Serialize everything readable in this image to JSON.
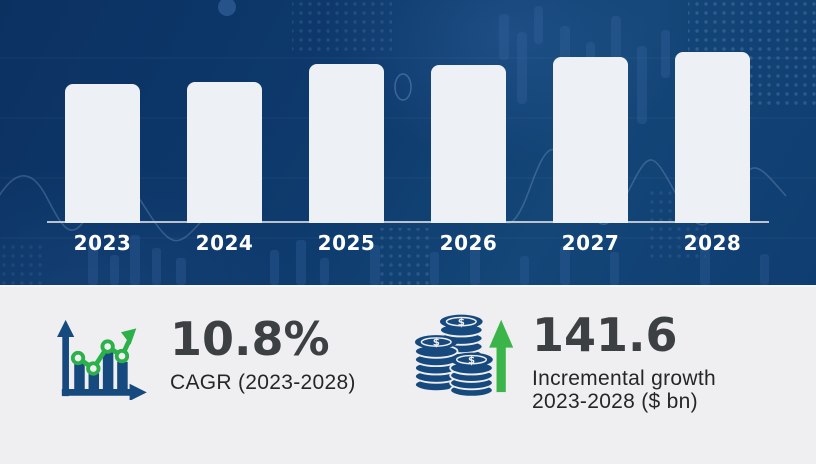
{
  "chart_data": {
    "type": "bar",
    "title": "",
    "categories": [
      "2023",
      "2024",
      "2025",
      "2026",
      "2027",
      "2028"
    ],
    "values": [
      139,
      141,
      159,
      158,
      166,
      171
    ],
    "value_unit": "bar height in px as drawn (chart displays no numeric y-axis)",
    "xlabel": "",
    "ylabel": "",
    "grid": false,
    "legend": false,
    "bar_color": "#edf0f4",
    "label_color": "#ffffff",
    "axis_color": "#c9ced6",
    "background_color": "#0e3a6d"
  },
  "stats": {
    "cagr": {
      "value": "10.8%",
      "label": "CAGR (2023-2028)",
      "icon": "growth-chart-icon"
    },
    "incremental": {
      "value": "141.6",
      "label_line1": "Incremental growth",
      "label_line2": "2023-2028 ($ bn)",
      "icon": "coins-up-arrow-icon"
    }
  },
  "colors": {
    "hero_blue": "#0e3a6d",
    "stats_background": "#efeff2",
    "stat_number": "#3d4043",
    "stat_label": "#242628",
    "icon_navy": "#16497d",
    "icon_green": "#2bb04a"
  }
}
